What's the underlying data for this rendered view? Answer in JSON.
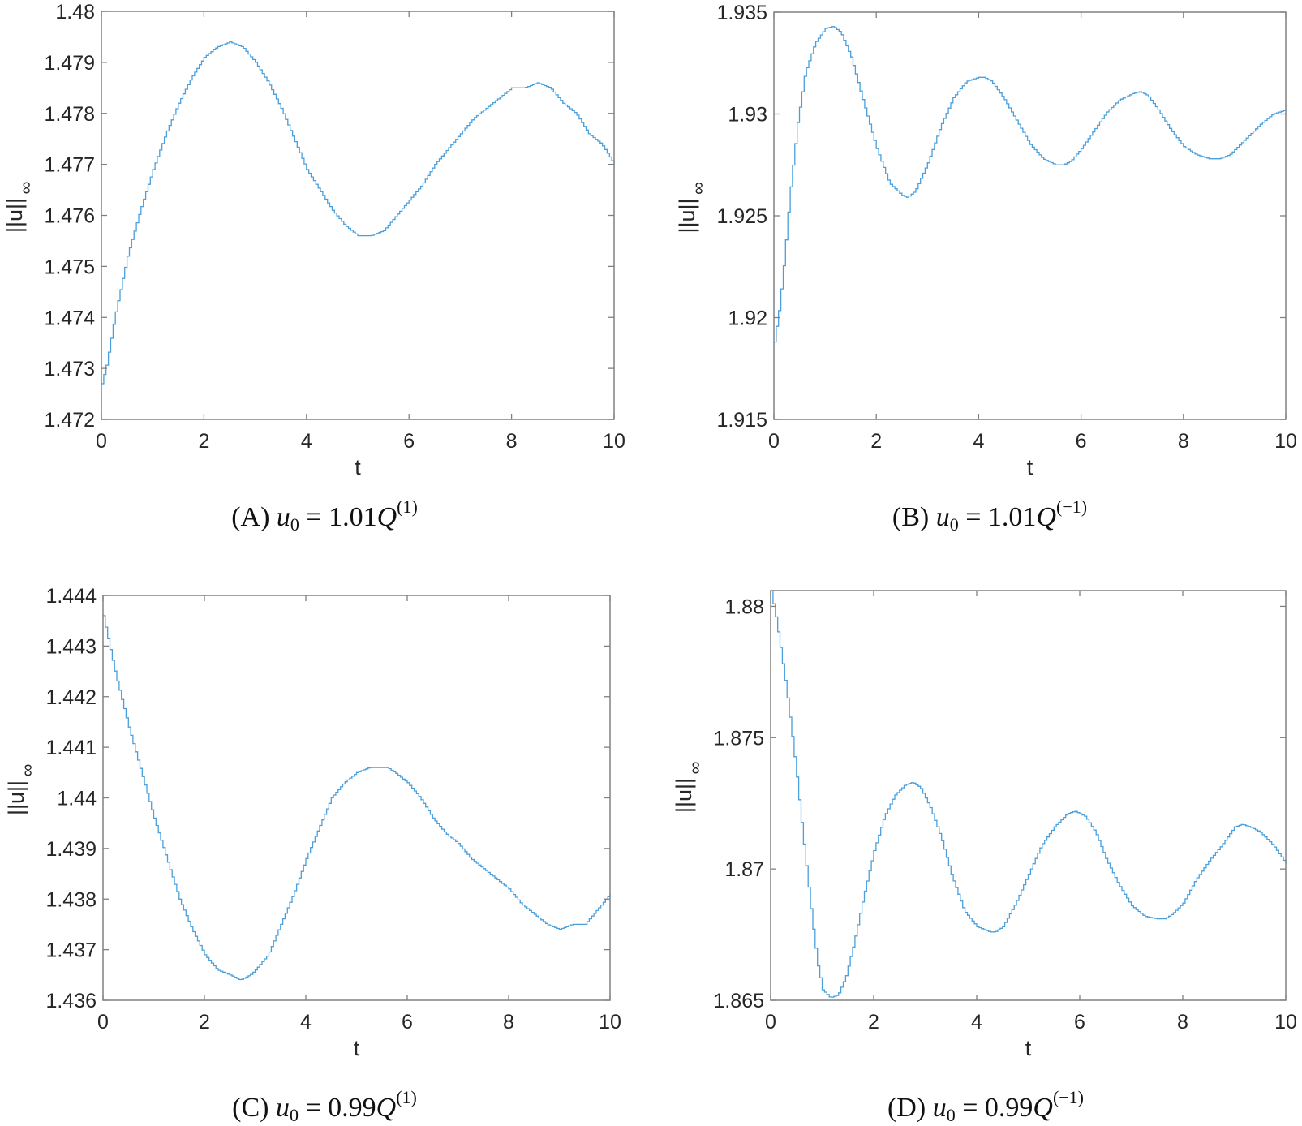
{
  "figure": {
    "panels": [
      {
        "id": "A",
        "caption": {
          "label": "(A)",
          "var": "u",
          "sub": "0",
          "eq": " = 1.01",
          "Q": "Q",
          "sup": "(1)"
        },
        "xlabel": "t",
        "ylabel": "||u||",
        "ylabel_sub": "∞"
      },
      {
        "id": "B",
        "caption": {
          "label": "(B)",
          "var": "u",
          "sub": "0",
          "eq": " = 1.01",
          "Q": "Q",
          "sup": "(−1)"
        },
        "xlabel": "t",
        "ylabel": "||u||",
        "ylabel_sub": "∞"
      },
      {
        "id": "C",
        "caption": {
          "label": "(C)",
          "var": "u",
          "sub": "0",
          "eq": " = 0.99",
          "Q": "Q",
          "sup": "(1)"
        },
        "xlabel": "t",
        "ylabel": "||u||",
        "ylabel_sub": "∞"
      },
      {
        "id": "D",
        "caption": {
          "label": "(D)",
          "var": "u",
          "sub": "0",
          "eq": " = 0.99",
          "Q": "Q",
          "sup": "(−1)"
        },
        "xlabel": "t",
        "ylabel": "||u||",
        "ylabel_sub": "∞"
      }
    ],
    "line_color": "#4a9fdc",
    "axis_color": "#808080"
  },
  "chart_data": [
    {
      "type": "line",
      "title": "(A) u0 = 1.01Q^(1)",
      "xlabel": "t",
      "ylabel": "||u||_∞",
      "xlim": [
        0,
        10
      ],
      "ylim": [
        1.472,
        1.48
      ],
      "xticks": [
        0,
        2,
        4,
        6,
        8,
        10
      ],
      "yticks": [
        1.472,
        1.473,
        1.474,
        1.475,
        1.476,
        1.477,
        1.478,
        1.479,
        1.48
      ],
      "ytick_labels": [
        "1.472",
        "1.473",
        "1.474",
        "1.475",
        "1.476",
        "1.477",
        "1.478",
        "1.479",
        "1.48"
      ],
      "grid": false,
      "series": [
        {
          "name": "||u||_∞",
          "x": [
            0,
            0.1,
            0.25,
            0.5,
            0.75,
            1.0,
            1.25,
            1.5,
            1.75,
            2.0,
            2.25,
            2.5,
            2.75,
            3.0,
            3.25,
            3.5,
            3.75,
            4.0,
            4.25,
            4.5,
            4.75,
            5.0,
            5.25,
            5.5,
            5.75,
            6.0,
            6.25,
            6.5,
            6.75,
            7.0,
            7.25,
            7.5,
            7.75,
            8.0,
            8.25,
            8.5,
            8.75,
            9.0,
            9.25,
            9.5,
            9.75,
            10.0
          ],
          "y": [
            1.4727,
            1.4731,
            1.474,
            1.4752,
            1.4761,
            1.4769,
            1.4776,
            1.4782,
            1.4787,
            1.4791,
            1.4793,
            1.4794,
            1.4793,
            1.479,
            1.4786,
            1.4781,
            1.4775,
            1.4769,
            1.4765,
            1.4761,
            1.4758,
            1.4756,
            1.4756,
            1.4757,
            1.476,
            1.4763,
            1.4766,
            1.477,
            1.4773,
            1.4776,
            1.4779,
            1.4781,
            1.4783,
            1.4785,
            1.4785,
            1.4786,
            1.4785,
            1.4782,
            1.478,
            1.4776,
            1.4774,
            1.477
          ]
        }
      ]
    },
    {
      "type": "line",
      "title": "(B) u0 = 1.01Q^(-1)",
      "xlabel": "t",
      "ylabel": "||u||_∞",
      "xlim": [
        0,
        10
      ],
      "ylim": [
        1.915,
        1.935
      ],
      "xticks": [
        0,
        2,
        4,
        6,
        8,
        10
      ],
      "yticks": [
        1.915,
        1.92,
        1.925,
        1.93,
        1.935
      ],
      "ytick_labels": [
        "1.915",
        "1.92",
        "1.925",
        "1.93",
        "1.935"
      ],
      "grid": false,
      "series": [
        {
          "name": "||u||_∞",
          "x": [
            0,
            0.1,
            0.2,
            0.3,
            0.45,
            0.6,
            0.8,
            1.0,
            1.15,
            1.3,
            1.5,
            1.75,
            2.0,
            2.25,
            2.5,
            2.6,
            2.75,
            3.0,
            3.25,
            3.5,
            3.75,
            4.0,
            4.1,
            4.25,
            4.5,
            4.75,
            5.0,
            5.25,
            5.5,
            5.65,
            5.8,
            6.0,
            6.25,
            6.5,
            6.75,
            7.0,
            7.15,
            7.3,
            7.5,
            7.75,
            8.0,
            8.25,
            8.5,
            8.7,
            8.9,
            9.1,
            9.3,
            9.5,
            9.75,
            10.0
          ],
          "y": [
            1.9188,
            1.9205,
            1.923,
            1.926,
            1.9295,
            1.932,
            1.9335,
            1.9342,
            1.9343,
            1.934,
            1.9328,
            1.9305,
            1.9283,
            1.9266,
            1.926,
            1.9259,
            1.9262,
            1.9276,
            1.9294,
            1.9308,
            1.9316,
            1.9318,
            1.9318,
            1.9316,
            1.9307,
            1.9296,
            1.9285,
            1.9278,
            1.9275,
            1.9275,
            1.9277,
            1.9283,
            1.9292,
            1.9301,
            1.9307,
            1.931,
            1.9311,
            1.9309,
            1.9302,
            1.9292,
            1.9284,
            1.928,
            1.9278,
            1.9278,
            1.928,
            1.9285,
            1.929,
            1.9295,
            1.93,
            1.9302
          ]
        }
      ]
    },
    {
      "type": "line",
      "title": "(C) u0 = 0.99Q^(1)",
      "xlabel": "t",
      "ylabel": "||u||_∞",
      "xlim": [
        0,
        10
      ],
      "ylim": [
        1.436,
        1.444
      ],
      "xticks": [
        0,
        2,
        4,
        6,
        8,
        10
      ],
      "yticks": [
        1.436,
        1.437,
        1.438,
        1.439,
        1.44,
        1.441,
        1.442,
        1.443,
        1.444
      ],
      "ytick_labels": [
        "1.436",
        "1.437",
        "1.438",
        "1.439",
        "1.44",
        "1.441",
        "1.442",
        "1.443",
        "1.444"
      ],
      "grid": false,
      "series": [
        {
          "name": "||u||_∞",
          "x": [
            0,
            0.1,
            0.25,
            0.5,
            0.75,
            1.0,
            1.25,
            1.5,
            1.75,
            2.0,
            2.25,
            2.5,
            2.7,
            2.9,
            3.0,
            3.25,
            3.5,
            3.75,
            4.0,
            4.25,
            4.5,
            4.75,
            5.0,
            5.25,
            5.5,
            5.6,
            5.75,
            6.0,
            6.25,
            6.5,
            6.75,
            7.0,
            7.25,
            7.5,
            7.75,
            8.0,
            8.25,
            8.5,
            8.75,
            9.0,
            9.25,
            9.5,
            9.75,
            10.0
          ],
          "y": [
            1.4436,
            1.4431,
            1.4424,
            1.4414,
            1.4405,
            1.4396,
            1.4388,
            1.438,
            1.4374,
            1.4369,
            1.4366,
            1.4365,
            1.4364,
            1.4365,
            1.4366,
            1.4369,
            1.4375,
            1.4381,
            1.4388,
            1.4394,
            1.44,
            1.4403,
            1.4405,
            1.4406,
            1.4406,
            1.4406,
            1.4405,
            1.4403,
            1.44,
            1.4396,
            1.4393,
            1.4391,
            1.4388,
            1.4386,
            1.4384,
            1.4382,
            1.4379,
            1.4377,
            1.4375,
            1.4374,
            1.4375,
            1.4375,
            1.4378,
            1.4381
          ]
        }
      ]
    },
    {
      "type": "line",
      "title": "(D) u0 = 0.99Q^(-1)",
      "xlabel": "t",
      "ylabel": "||u||_∞",
      "xlim": [
        0,
        10
      ],
      "ylim": [
        1.865,
        1.8806
      ],
      "xticks": [
        0,
        2,
        4,
        6,
        8,
        10
      ],
      "yticks": [
        1.865,
        1.87,
        1.875,
        1.88
      ],
      "ytick_labels": [
        "1.865",
        "1.87",
        "1.875",
        "1.88"
      ],
      "grid": false,
      "series": [
        {
          "name": "||u||_∞",
          "x": [
            0,
            0.1,
            0.2,
            0.3,
            0.4,
            0.5,
            0.6,
            0.7,
            0.8,
            0.9,
            1.0,
            1.15,
            1.3,
            1.45,
            1.6,
            1.8,
            2.0,
            2.2,
            2.4,
            2.6,
            2.75,
            2.9,
            3.1,
            3.3,
            3.5,
            3.75,
            4.0,
            4.25,
            4.35,
            4.5,
            4.75,
            5.0,
            5.25,
            5.5,
            5.75,
            5.9,
            6.1,
            6.3,
            6.5,
            6.75,
            7.0,
            7.25,
            7.5,
            7.65,
            7.8,
            8.0,
            8.25,
            8.5,
            8.75,
            9.0,
            9.15,
            9.3,
            9.5,
            9.75,
            10.0
          ],
          "y": [
            1.8806,
            1.8795,
            1.8782,
            1.8768,
            1.8752,
            1.8735,
            1.8716,
            1.8698,
            1.868,
            1.8664,
            1.8654,
            1.8651,
            1.8652,
            1.8659,
            1.8671,
            1.869,
            1.8707,
            1.872,
            1.8728,
            1.8732,
            1.8733,
            1.8731,
            1.8723,
            1.8712,
            1.8698,
            1.8684,
            1.8678,
            1.8676,
            1.8676,
            1.8678,
            1.8687,
            1.8698,
            1.8709,
            1.8716,
            1.8721,
            1.8722,
            1.872,
            1.8714,
            1.8704,
            1.8694,
            1.8686,
            1.8682,
            1.8681,
            1.8681,
            1.8683,
            1.8687,
            1.8696,
            1.8703,
            1.8709,
            1.8716,
            1.8717,
            1.8716,
            1.8714,
            1.8709,
            1.8702
          ]
        }
      ]
    }
  ]
}
